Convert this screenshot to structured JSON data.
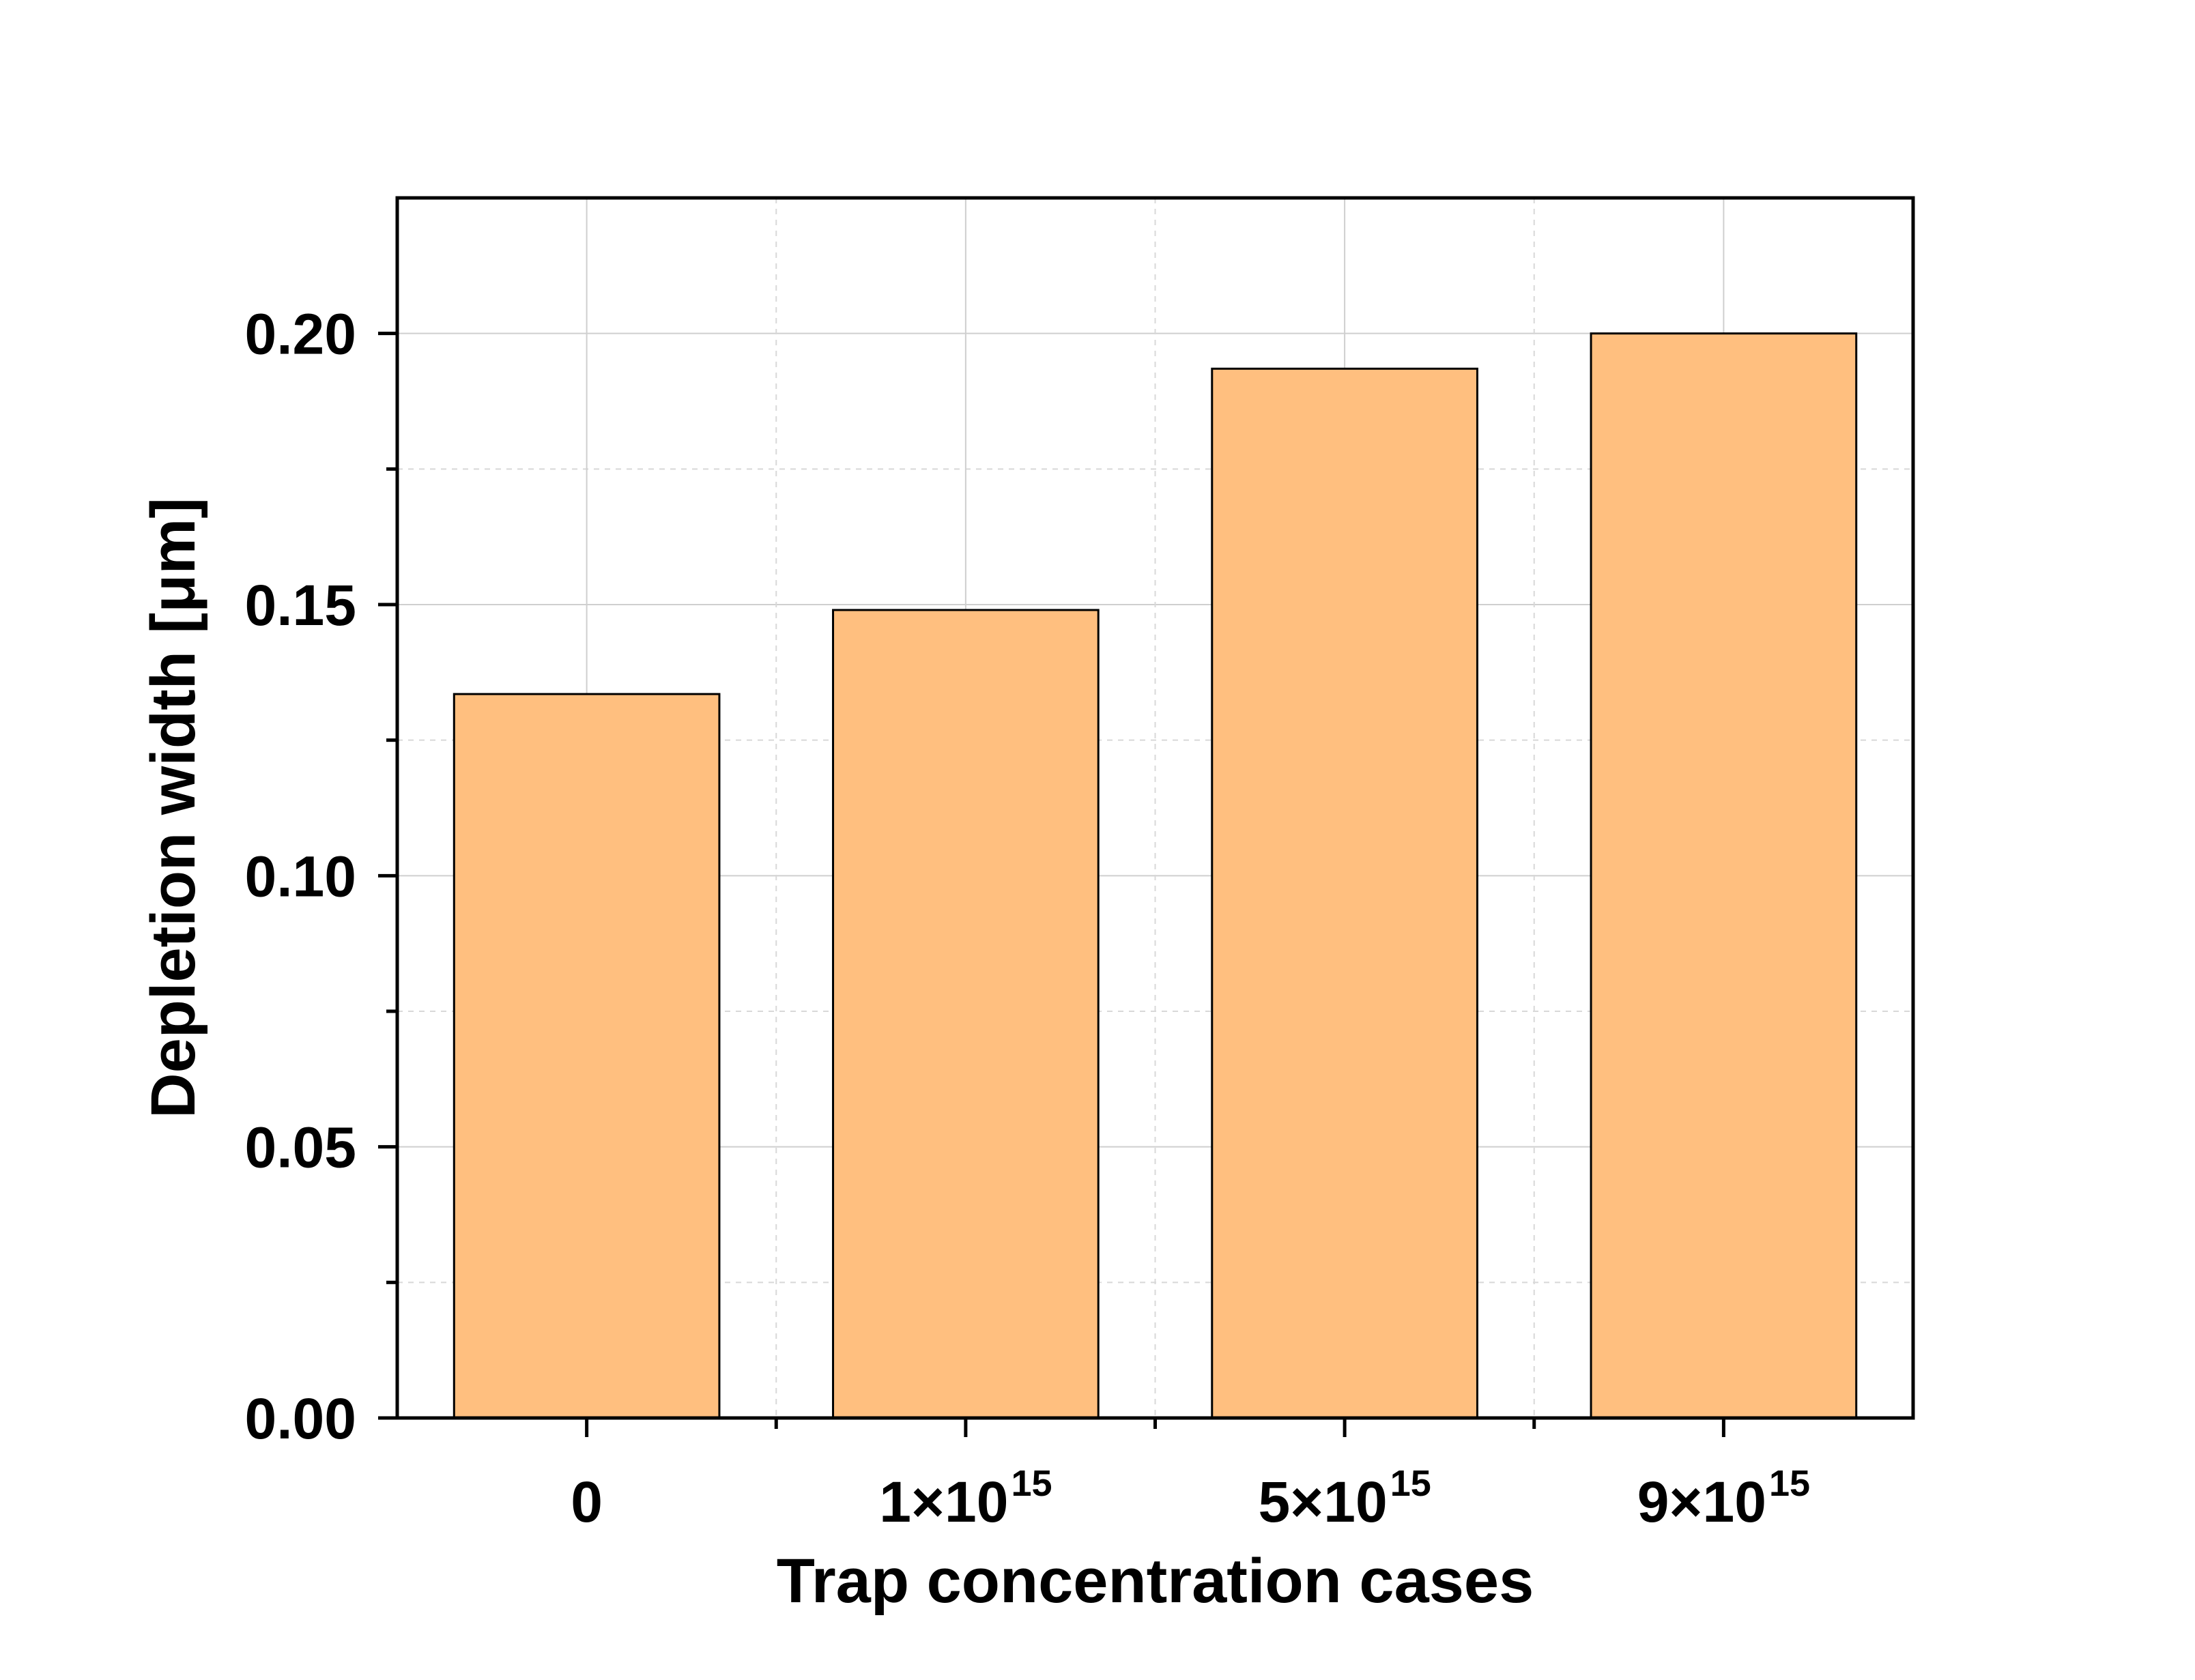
{
  "chart_data": {
    "type": "bar",
    "categories": [
      {
        "base": "0",
        "exp": ""
      },
      {
        "base": "1×10",
        "exp": "15"
      },
      {
        "base": "5×10",
        "exp": "15"
      },
      {
        "base": "9×10",
        "exp": "15"
      }
    ],
    "values": [
      0.1335,
      0.149,
      0.1935,
      0.2
    ],
    "xlabel": "Trap concentration cases",
    "ylabel": "Depletion width [μm]",
    "ylim": [
      0,
      0.225
    ],
    "yticks": [
      "0.00",
      "0.05",
      "0.10",
      "0.15",
      "0.20"
    ],
    "ytick_values": [
      0,
      0.05,
      0.1,
      0.15,
      0.2
    ],
    "grid": true,
    "bar_color": "#FFBF7F",
    "edge_color": "#000000"
  }
}
